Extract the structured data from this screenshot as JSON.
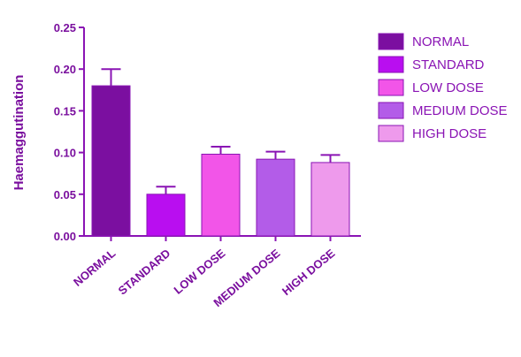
{
  "chart_data": {
    "type": "bar",
    "title": "",
    "xlabel": "",
    "ylabel": "Haemaggutination",
    "categories": [
      "NORMAL",
      "STANDARD",
      "LOW DOSE",
      "MEDIUM DOSE",
      "HIGH DOSE"
    ],
    "values": [
      0.18,
      0.05,
      0.098,
      0.092,
      0.088
    ],
    "errors": [
      0.02,
      0.009,
      0.009,
      0.009,
      0.009
    ],
    "ylim": [
      0,
      0.25
    ],
    "yticks": [
      "0.00",
      "0.05",
      "0.10",
      "0.15",
      "0.20",
      "0.25"
    ],
    "grid": false,
    "legend_position": "right",
    "legend": [
      "NORMAL",
      "STANDARD",
      "LOW DOSE",
      "MEDIUM DOSE",
      "HIGH DOSE"
    ],
    "colors": [
      "#7b0fa0",
      "#b90ef0",
      "#f255e8",
      "#b35ce8",
      "#ee9aec"
    ],
    "axis_color": "#8a14b4"
  }
}
